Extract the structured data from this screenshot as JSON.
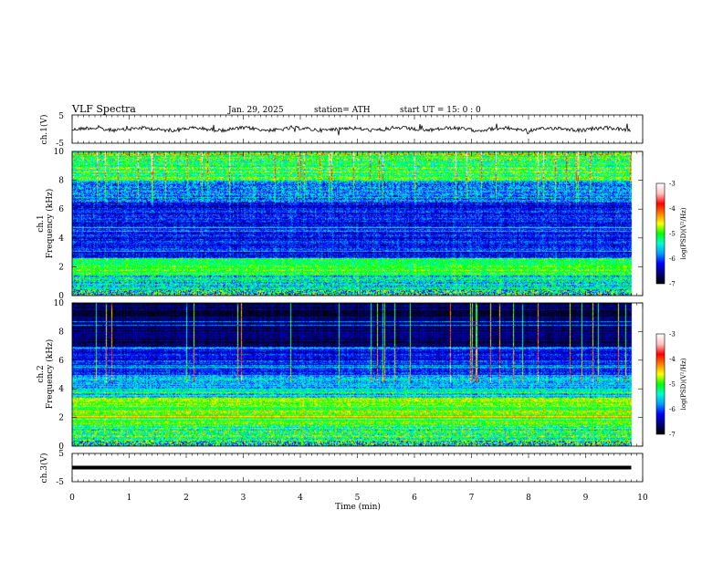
{
  "header": {
    "title": "VLF  Spectra",
    "date": "Jan. 29, 2025",
    "station": "station= ATH",
    "start_ut": "start  UT  =   15: 0  : 0"
  },
  "chart_data": [
    {
      "type": "line",
      "name": "ch1-waveform",
      "ylabel": "ch.1(V)",
      "ylim": [
        -5,
        5
      ],
      "yticks": [
        "5",
        "-5"
      ],
      "x_unit": "min",
      "xlim": [
        0,
        10
      ],
      "data_x_range": [
        0,
        9.8
      ]
    },
    {
      "type": "heatmap",
      "name": "ch1-spectrogram",
      "ylabel": "ch.1\nFrequency (kHz)",
      "ylim": [
        0,
        10
      ],
      "yticks": [
        "0",
        "2",
        "4",
        "6",
        "8",
        "10"
      ],
      "colorbar": {
        "label": "log(PSD)(V²/Hz)",
        "range": [
          -7,
          -3
        ],
        "ticks": [
          "-3",
          "-4",
          "-5",
          "-6",
          "-7"
        ]
      }
    },
    {
      "type": "heatmap",
      "name": "ch2-spectrogram",
      "ylabel": "ch.2\nFrequency (kHz)",
      "ylim": [
        0,
        10
      ],
      "yticks": [
        "0",
        "2",
        "4",
        "6",
        "8",
        "10"
      ],
      "colorbar": {
        "label": "log(PSD)(V²/Hz)",
        "range": [
          -7,
          -3
        ],
        "ticks": [
          "-3",
          "-4",
          "-5",
          "-6",
          "-7"
        ]
      }
    },
    {
      "type": "line",
      "name": "ch3-waveform",
      "ylabel": "ch.3(V)",
      "ylim": [
        -5,
        5
      ],
      "yticks": [
        "5",
        "-5"
      ],
      "level": 0
    }
  ],
  "xaxis": {
    "label": "Time  (min)",
    "ticks": [
      "0",
      "1",
      "2",
      "3",
      "4",
      "5",
      "6",
      "7",
      "8",
      "9",
      "10"
    ]
  },
  "colors": {
    "waveform": "#000000",
    "background": "#ffffff",
    "colormap": [
      "#000000",
      "#000080",
      "#0000ff",
      "#00a0ff",
      "#00ffd0",
      "#00ff00",
      "#ffff00",
      "#ff8000",
      "#ff0000",
      "#ffc0c0",
      "#ffffff"
    ]
  }
}
